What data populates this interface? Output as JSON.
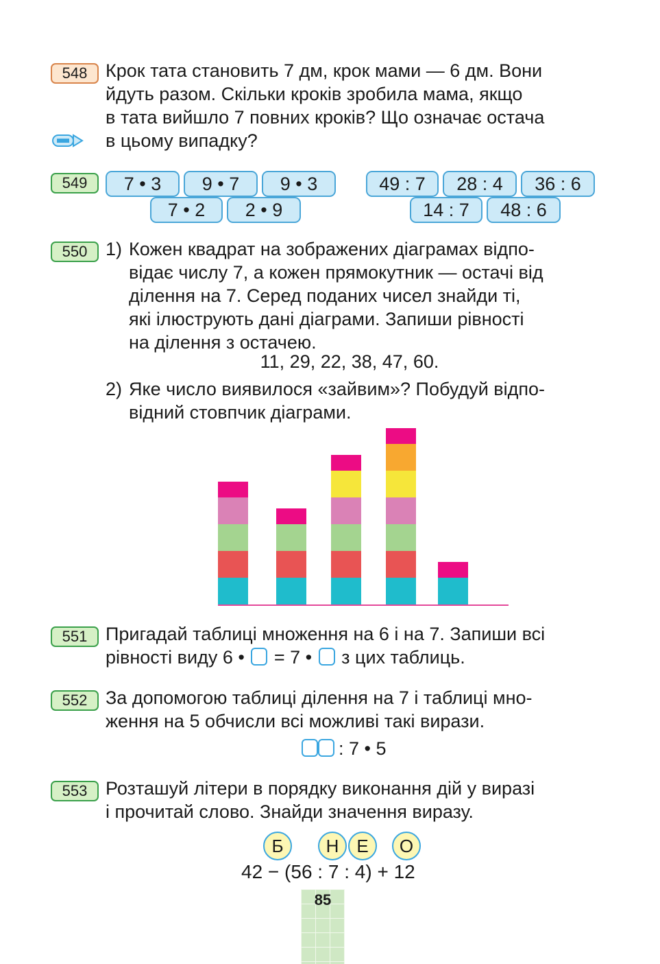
{
  "colors": {
    "cyan": "#1fbccc",
    "red": "#e85454",
    "green": "#a4d490",
    "pink": "#da82b6",
    "yellow": "#f6e63a",
    "orange": "#f8a830",
    "magenta": "#ec0c84",
    "axis": "#e4489a"
  },
  "task548": {
    "number": "548",
    "lines": [
      "Крок тата становить 7 дм, крок мами — 6 дм. Вони",
      "йдуть разом. Скільки кроків зробила мама, якщо",
      "в тата вийшло 7 повних кроків? Що означає остача",
      "в цьому випадку?"
    ],
    "icon": "pencil-icon"
  },
  "task549": {
    "number": "549",
    "mult_row1": [
      "7 • 3",
      "9 • 7",
      "9 • 3"
    ],
    "mult_row2": [
      "7 • 2",
      "2 • 9"
    ],
    "div_row1": [
      "49 : 7",
      "28 : 4",
      "36 : 6"
    ],
    "div_row2": [
      "14 : 7",
      "48 : 6"
    ]
  },
  "task550": {
    "number": "550",
    "part1_label": "1)",
    "part1_lines": [
      "Кожен квадрат на зображених діаграмах відпо-",
      "відає числу 7, а кожен прямокутник — остачі від",
      "ділення на 7. Серед поданих чисел знайди ті,",
      "які ілюструють дані діаграми. Запиши рівності",
      "на ділення з остачею."
    ],
    "numbers": "11, 29, 22, 38, 47, 60.",
    "part2_label": "2)",
    "part2_lines": [
      "Яке число виявилося «зайвим»? Побудуй відпо-",
      "відний стовпчик діаграми."
    ]
  },
  "chart_data": {
    "type": "bar",
    "xlabel": "",
    "ylabel": "",
    "categories": [
      "",
      "",
      "",
      "",
      ""
    ],
    "values": [
      29,
      22,
      38,
      47,
      11
    ],
    "full_squares": [
      4,
      3,
      5,
      6,
      1
    ],
    "remainders": [
      1,
      1,
      3,
      5,
      4
    ],
    "square_colors": [
      "#1fbccc",
      "#e85454",
      "#a4d490",
      "#da82b6",
      "#f6e63a",
      "#f8a830"
    ],
    "remainder_color": "#ec0c84"
  },
  "task551": {
    "number": "551",
    "line1": "Пригадай таблиці множення на 6 і на 7. Запиши всі",
    "line2_a": "рівності виду 6 •",
    "line2_b": "= 7 •",
    "line2_c": "з цих таблиць."
  },
  "task552": {
    "number": "552",
    "lines": [
      "За допомогою таблиці ділення на 7 і таблиці мно-",
      "ження на 5 обчисли всі можливі такі вирази."
    ],
    "expression": ": 7 • 5"
  },
  "task553": {
    "number": "553",
    "lines": [
      "Розташуй літери в порядку виконання дій у виразі",
      "і прочитай слово. Знайди значення виразу."
    ],
    "letters": [
      "Б",
      "Н",
      "Е",
      "О"
    ],
    "expression": "42 − (56 : 7 : 4) + 12"
  },
  "page_number": "85"
}
